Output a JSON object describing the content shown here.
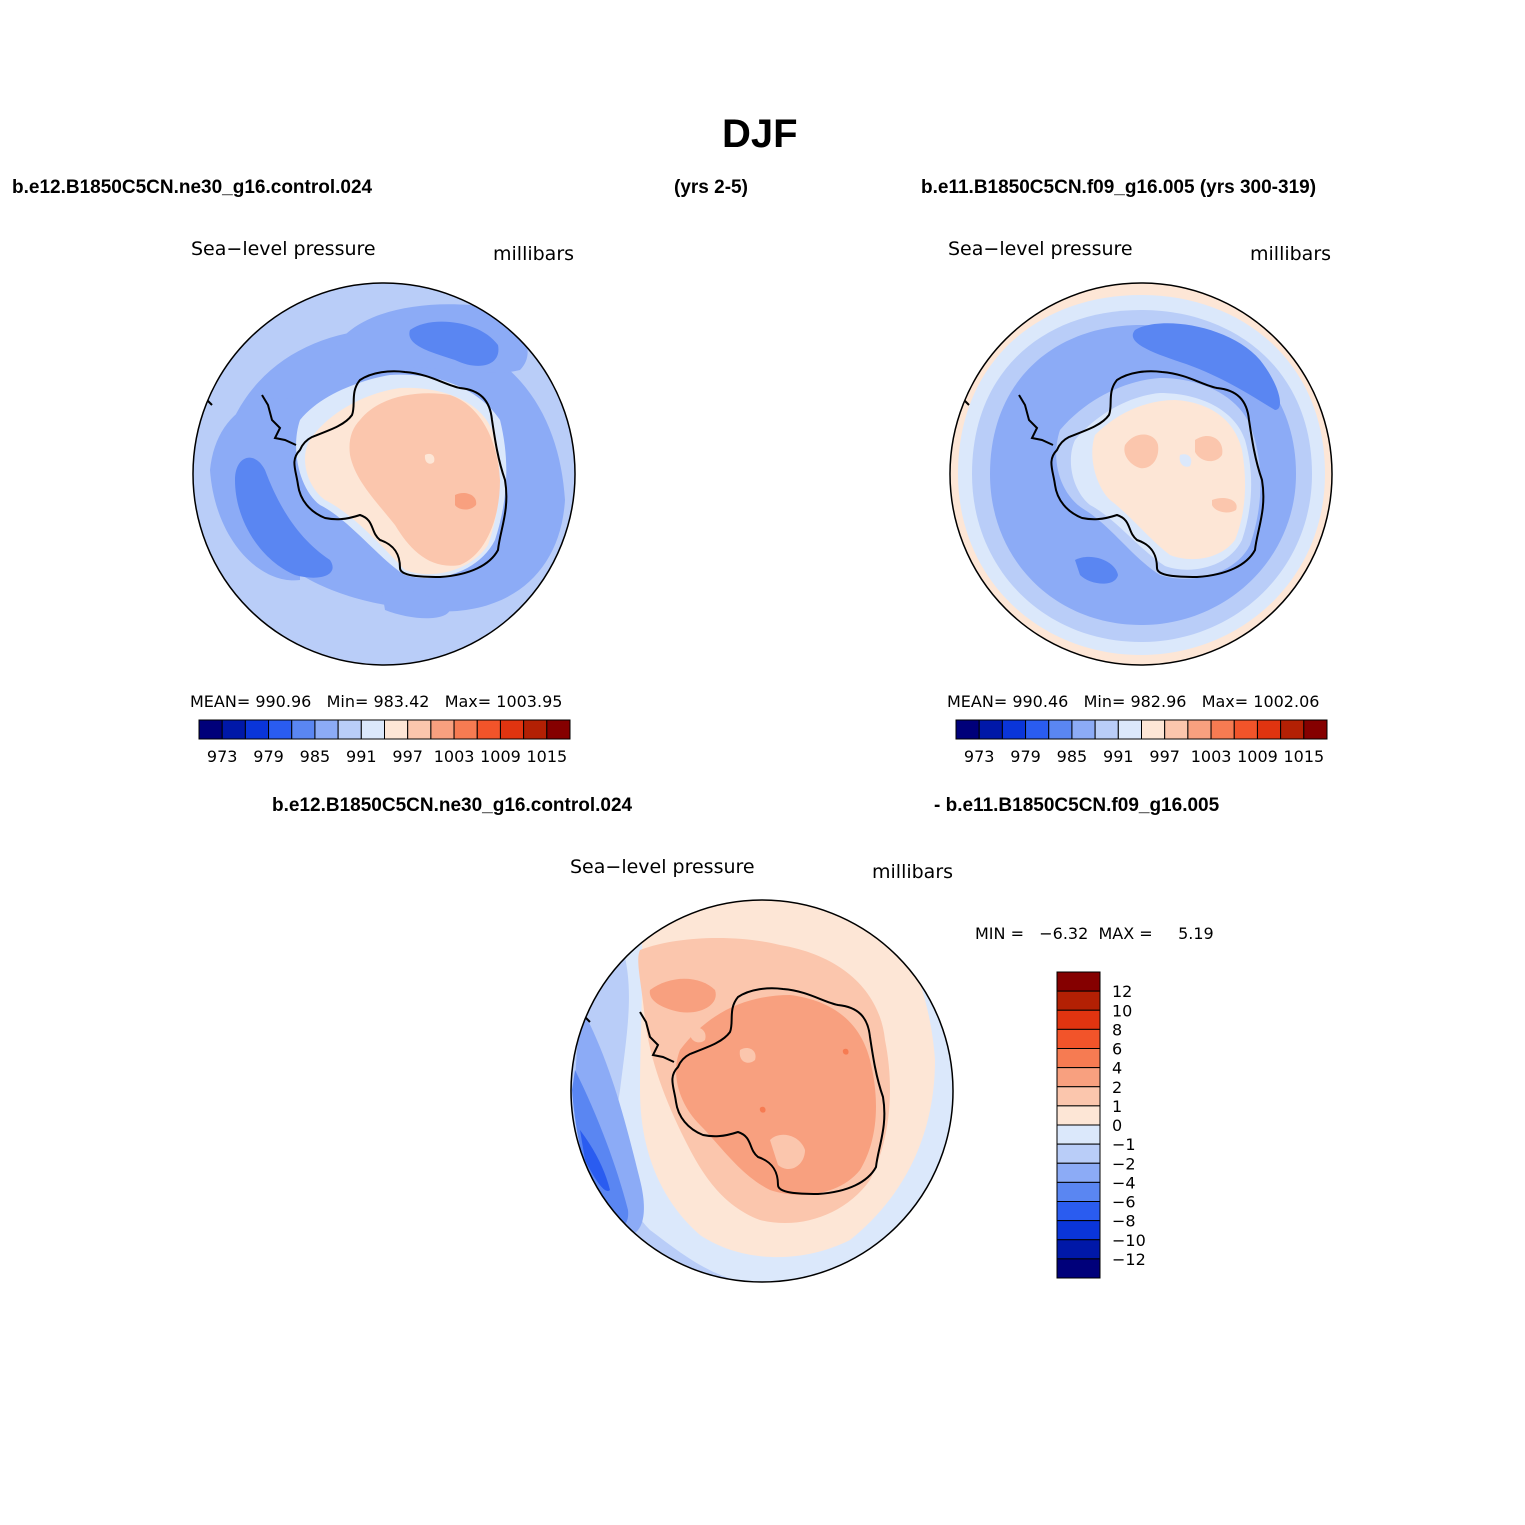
{
  "title": "DJF",
  "case_left": "b.e12.B1850C5CN.ne30_g16.control.024",
  "years_left": "(yrs 2-5)",
  "case_right": "b.e11.B1850C5CN.f09_g16.005 (yrs 300-319)",
  "diff_case_a": "b.e12.B1850C5CN.ne30_g16.control.024",
  "diff_case_b": "- b.e11.B1850C5CN.f09_g16.005",
  "panels": [
    {
      "variable": "Sea−level pressure",
      "units": "millibars",
      "stats": "MEAN= 990.96   Min= 983.42   Max= 1003.95"
    },
    {
      "variable": "Sea−level pressure",
      "units": "millibars",
      "stats": "MEAN= 990.46   Min= 982.96   Max= 1002.06"
    },
    {
      "variable": "Sea−level pressure",
      "units": "millibars",
      "stats": "MIN =   −6.32  MAX =     5.19"
    }
  ],
  "colorbar_h": {
    "colors": [
      "#00007a",
      "#0018a8",
      "#0a35d9",
      "#2a5cf0",
      "#5a86f2",
      "#8cabf6",
      "#b9cdf8",
      "#dbe8fb",
      "#fde6d6",
      "#fbc6ad",
      "#f8a07f",
      "#f67b52",
      "#f2542a",
      "#e03410",
      "#b32004",
      "#850000"
    ],
    "labels": [
      "973",
      "979",
      "985",
      "991",
      "997",
      "1003",
      "1009",
      "1015"
    ]
  },
  "colorbar_v": {
    "colors": [
      "#850000",
      "#b32004",
      "#e03410",
      "#f2542a",
      "#f67b52",
      "#f8a07f",
      "#fbc6ad",
      "#fde6d6",
      "#dbe8fb",
      "#b9cdf8",
      "#8cabf6",
      "#5a86f2",
      "#2a5cf0",
      "#0a35d9",
      "#0018a8",
      "#00007a"
    ],
    "labels": [
      "12",
      "10",
      "8",
      "6",
      "4",
      "2",
      "1",
      "0",
      "−1",
      "−2",
      "−4",
      "−6",
      "−8",
      "−10",
      "−12"
    ]
  }
}
